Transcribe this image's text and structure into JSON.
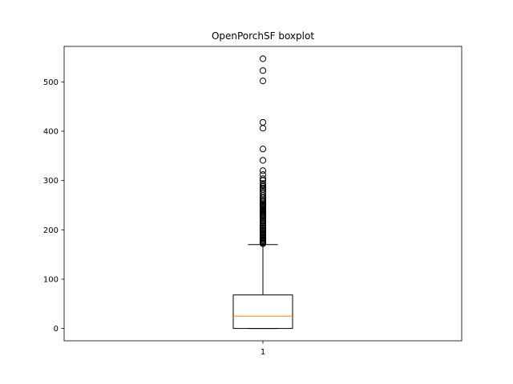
{
  "chart_data": {
    "type": "boxplot",
    "title": "OpenPorchSF boxplot",
    "xlabel": "",
    "ylabel": "",
    "categories": [
      "1"
    ],
    "ylim": [
      -25,
      572
    ],
    "yticks": [
      0,
      100,
      200,
      300,
      400,
      500
    ],
    "grid": false,
    "boxes": [
      {
        "category": "1",
        "whisker_low": 0,
        "q1": 0,
        "median": 25,
        "q3": 68,
        "whisker_high": 170,
        "outliers": [
          172,
          174,
          176,
          178,
          180,
          182,
          184,
          185,
          187,
          189,
          190,
          192,
          195,
          198,
          200,
          203,
          205,
          208,
          210,
          213,
          215,
          218,
          222,
          225,
          228,
          230,
          232,
          234,
          236,
          238,
          240,
          242,
          244,
          246,
          248,
          250,
          252,
          255,
          258,
          260,
          263,
          266,
          270,
          274,
          278,
          282,
          285,
          288,
          291,
          294,
          300,
          304,
          312,
          320,
          341,
          364,
          406,
          418,
          502,
          523,
          547
        ]
      }
    ],
    "colors": {
      "box": "#000000",
      "median": "#ff7f0e",
      "outlier": "#000000"
    }
  }
}
